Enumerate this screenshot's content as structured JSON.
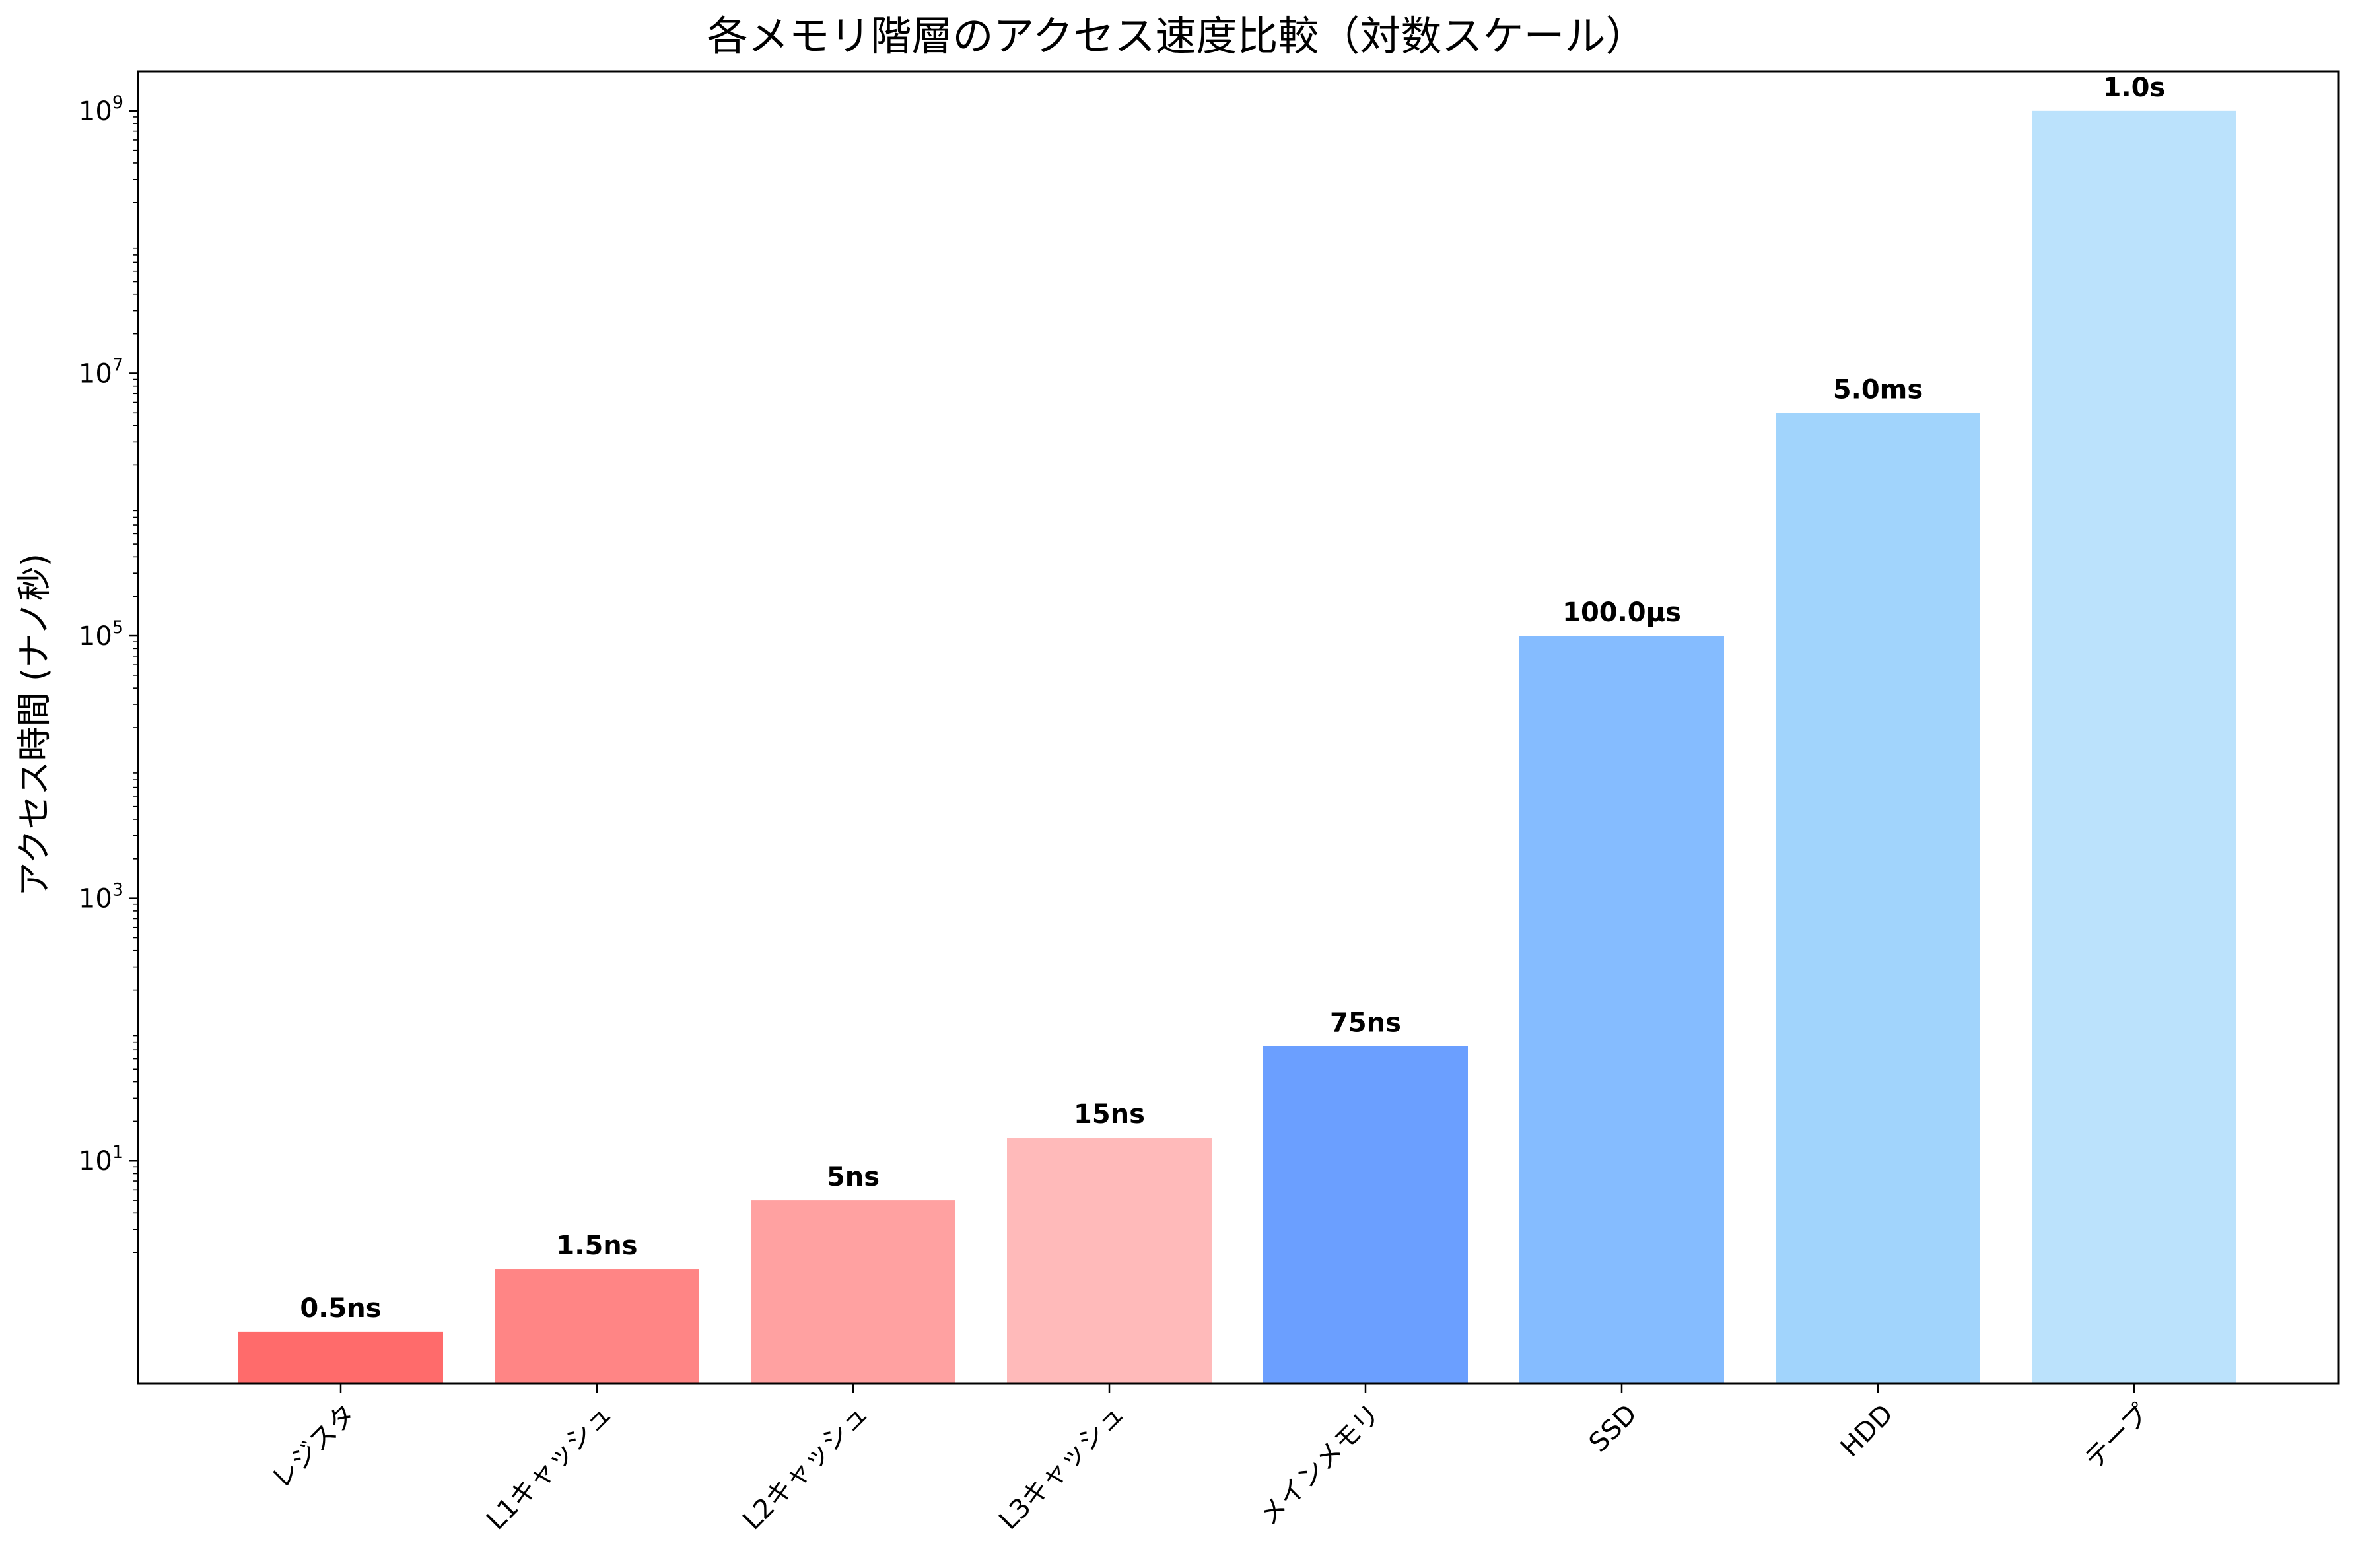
{
  "chart_data": {
    "type": "bar",
    "title": "各メモリ階層のアクセス速度比較（対数スケール）",
    "xlabel": "",
    "ylabel": "アクセス時間 (ナノ秒)",
    "yscale": "log",
    "ylim": [
      0.2,
      2000000000
    ],
    "y_ticks": [
      {
        "value": 10,
        "base": "10",
        "exp": "1"
      },
      {
        "value": 1000,
        "base": "10",
        "exp": "3"
      },
      {
        "value": 100000,
        "base": "10",
        "exp": "5"
      },
      {
        "value": 10000000,
        "base": "10",
        "exp": "7"
      },
      {
        "value": 1000000000,
        "base": "10",
        "exp": "9"
      }
    ],
    "grid": false,
    "categories": [
      "レジスタ",
      "L1キャッシュ",
      "L2キャッシュ",
      "L3キャッシュ",
      "メインメモリ",
      "SSD",
      "HDD",
      "テープ"
    ],
    "values": [
      0.5,
      1.5,
      5,
      15,
      75,
      100000,
      5000000,
      1000000000
    ],
    "value_labels": [
      "0.5ns",
      "1.5ns",
      "5ns",
      "15ns",
      "75ns",
      "100.0μs",
      "5.0ms",
      "1.0s"
    ],
    "colors": [
      "#ff6b6b",
      "#ff8585",
      "#ffa1a1",
      "#ffbaba",
      "#6b9fff",
      "#85bcff",
      "#a1d4fc",
      "#bbe2fc"
    ]
  }
}
